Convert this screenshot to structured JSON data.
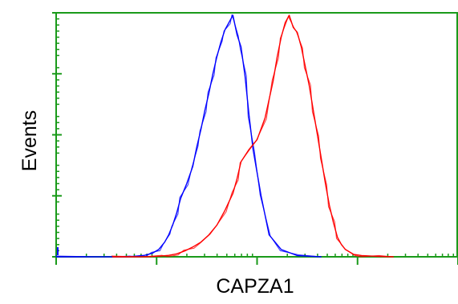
{
  "chart_data": {
    "type": "line",
    "title": "",
    "xlabel": "CAPZA1",
    "ylabel": "Events",
    "x_scale": "log",
    "xlim": [
      0,
      100
    ],
    "ylim": [
      0,
      100
    ],
    "grid": false,
    "legend": "none",
    "axis_color": "#1a9a1a",
    "x_major_ticks": [
      0,
      25,
      50,
      75,
      100
    ],
    "y_major_ticks": [
      0,
      25,
      50,
      75,
      100
    ],
    "series": [
      {
        "color": "#0000ff",
        "x": [
          0,
          10,
          15,
          18,
          20,
          22,
          24,
          25.5,
          27,
          28,
          29,
          30,
          31,
          32.5,
          34,
          35,
          36,
          37,
          38,
          39,
          40,
          41,
          42,
          43,
          44,
          45,
          46,
          47,
          48,
          49,
          51,
          53,
          56,
          60,
          66
        ],
        "y": [
          0,
          0,
          0,
          0,
          0.3,
          0.6,
          1.5,
          3,
          6,
          9,
          13,
          18,
          24,
          30,
          37,
          45,
          52,
          60,
          67,
          75,
          82,
          88,
          93,
          96,
          99,
          91,
          86,
          74,
          58,
          44,
          25,
          9,
          3,
          0.5,
          0
        ]
      },
      {
        "color": "#ff0000",
        "x": [
          14,
          20,
          22,
          26,
          28,
          30,
          32,
          34,
          36,
          38,
          40,
          42,
          44,
          45,
          46,
          48,
          50,
          52,
          54,
          55,
          56,
          57,
          58,
          59,
          60,
          61,
          62,
          63,
          64,
          65,
          66,
          67,
          68,
          69,
          70,
          71,
          72,
          74,
          76,
          80,
          84
        ],
        "y": [
          0,
          0,
          0,
          0.3,
          0.6,
          1.2,
          2.4,
          4,
          6,
          9,
          13,
          19,
          26,
          32,
          39,
          44,
          48,
          57,
          72,
          82,
          90,
          96,
          99,
          94,
          92,
          86,
          78,
          70,
          60,
          50,
          40,
          30,
          21,
          14,
          8,
          5,
          3,
          1,
          0.5,
          0.2,
          0
        ]
      }
    ]
  }
}
